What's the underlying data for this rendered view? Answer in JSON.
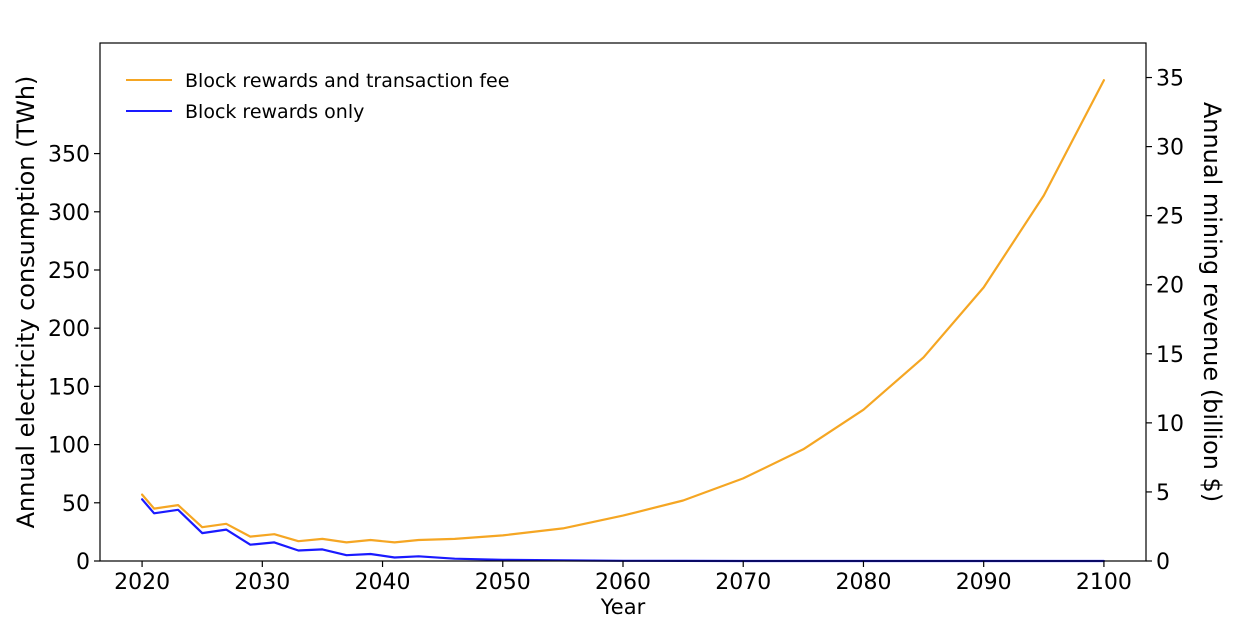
{
  "chart_data": {
    "type": "line",
    "xlabel": "Year",
    "ylabel_left": "Annual electricity consumption (TWh)",
    "ylabel_right": "Annual mining revenue (billion $)",
    "xlim": [
      2016.5,
      2103.5
    ],
    "ylim_left": [
      0,
      445
    ],
    "ylim_right": [
      0,
      37.5
    ],
    "x_ticks": [
      2020,
      2030,
      2040,
      2050,
      2060,
      2070,
      2080,
      2090,
      2100
    ],
    "y_left_ticks": [
      0,
      50,
      100,
      150,
      200,
      250,
      300,
      350
    ],
    "y_right_ticks": [
      0,
      5,
      10,
      15,
      20,
      25,
      30,
      35
    ],
    "legend": {
      "placement": "top-left"
    },
    "series": [
      {
        "name": "Block rewards and transaction fee",
        "color": "#f5a623",
        "x": [
          2020,
          2021,
          2023,
          2025,
          2027,
          2029,
          2031,
          2033,
          2035,
          2037,
          2039,
          2041,
          2043,
          2046,
          2050,
          2055,
          2060,
          2065,
          2070,
          2075,
          2080,
          2085,
          2090,
          2095,
          2100
        ],
        "y": [
          57,
          45,
          48,
          29,
          32,
          21,
          23,
          17,
          19,
          16,
          18,
          16,
          18,
          19,
          22,
          28,
          39,
          52,
          71,
          96,
          130,
          175,
          235,
          314,
          413
        ]
      },
      {
        "name": "Block rewards only",
        "color": "#1a1aff",
        "x": [
          2020,
          2021,
          2023,
          2025,
          2027,
          2029,
          2031,
          2033,
          2035,
          2037,
          2039,
          2041,
          2043,
          2046,
          2050,
          2055,
          2060,
          2065,
          2070,
          2080,
          2090,
          2100
        ],
        "y": [
          53,
          41,
          44,
          24,
          27,
          14,
          16,
          9,
          10,
          5,
          6,
          3,
          4,
          2,
          1,
          0.5,
          0.2,
          0.1,
          0,
          0,
          0,
          0
        ]
      }
    ]
  }
}
